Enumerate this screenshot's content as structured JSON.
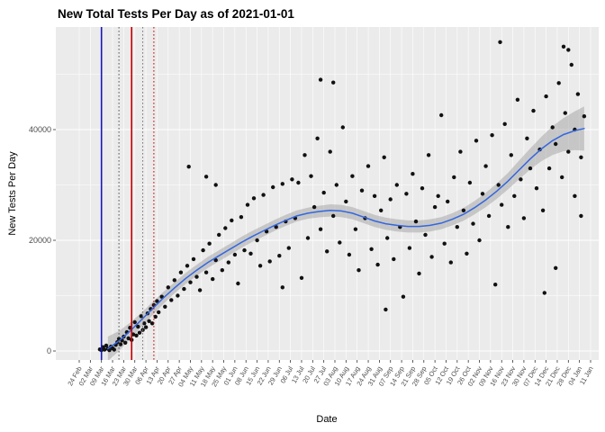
{
  "chart_data": {
    "type": "scatter",
    "title": "New Total Tests Per Day as of 2021-01-01",
    "xlabel": "Date",
    "ylabel": "New Tests Per Day",
    "legend": "none",
    "grid": "on",
    "y_ticks": [
      0,
      20000,
      40000
    ],
    "y_tick_labels": [
      "0",
      "20000",
      "40000"
    ],
    "y_minor_ticks": [
      10000,
      30000,
      50000
    ],
    "ylim": [
      -1600,
      58400
    ],
    "x_tick_labels": [
      "24 Feb",
      "02 Mar",
      "09 Mar",
      "16 Mar",
      "23 Mar",
      "30 Mar",
      "06 Apr",
      "13 Apr",
      "20 Apr",
      "27 Apr",
      "04 May",
      "11 May",
      "18 May",
      "25 May",
      "01 Jun",
      "08 Jun",
      "15 Jun",
      "22 Jun",
      "29 Jun",
      "06 Jul",
      "13 Jul",
      "20 Jul",
      "27 Jul",
      "03 Aug",
      "10 Aug",
      "17 Aug",
      "24 Aug",
      "31 Aug",
      "07 Sep",
      "14 Sep",
      "21 Sep",
      "28 Sep",
      "05 Oct",
      "12 Oct",
      "19 Oct",
      "26 Oct",
      "02 Nov",
      "09 Nov",
      "16 Nov",
      "23 Nov",
      "30 Nov",
      "07 Dec",
      "14 Dec",
      "21 Dec",
      "28 Dec",
      "04 Jan",
      "11 Jan"
    ],
    "x_tick_interval_days": 7,
    "x_domain_days": [
      0,
      322
    ],
    "vlines": [
      {
        "x_day": 14,
        "color": "#1717B8",
        "dash": "solid",
        "width": 1.6
      },
      {
        "x_day": 25,
        "color": "#555555",
        "dash": "dotted",
        "width": 1
      },
      {
        "x_day": 33,
        "color": "#C40000",
        "dash": "solid",
        "width": 1.6
      },
      {
        "x_day": 40,
        "color": "#777777",
        "dash": "dotted",
        "width": 1
      },
      {
        "x_day": 47,
        "color": "#C40000",
        "dash": "dotted",
        "width": 1
      }
    ],
    "smooth": [
      [
        18,
        400,
        2200
      ],
      [
        25,
        1800,
        1800
      ],
      [
        32,
        3600,
        1500
      ],
      [
        39,
        5600,
        1300
      ],
      [
        46,
        7600,
        1200
      ],
      [
        53,
        9600,
        1100
      ],
      [
        60,
        11400,
        1000
      ],
      [
        67,
        13100,
        1000
      ],
      [
        74,
        14600,
        1000
      ],
      [
        81,
        16000,
        1000
      ],
      [
        88,
        17200,
        1000
      ],
      [
        95,
        18400,
        1000
      ],
      [
        102,
        19600,
        1000
      ],
      [
        109,
        20700,
        1000
      ],
      [
        116,
        21700,
        1000
      ],
      [
        123,
        22700,
        1000
      ],
      [
        130,
        23600,
        1000
      ],
      [
        137,
        24400,
        1000
      ],
      [
        144,
        24900,
        1000
      ],
      [
        151,
        25200,
        1050
      ],
      [
        158,
        25400,
        1100
      ],
      [
        165,
        25300,
        1100
      ],
      [
        172,
        24900,
        1100
      ],
      [
        179,
        24200,
        1100
      ],
      [
        186,
        23500,
        1100
      ],
      [
        193,
        23000,
        1100
      ],
      [
        200,
        22700,
        1100
      ],
      [
        207,
        22500,
        1100
      ],
      [
        214,
        22500,
        1100
      ],
      [
        221,
        22700,
        1100
      ],
      [
        228,
        23100,
        1100
      ],
      [
        235,
        23800,
        1100
      ],
      [
        242,
        24700,
        1150
      ],
      [
        249,
        25900,
        1200
      ],
      [
        256,
        27300,
        1300
      ],
      [
        263,
        28900,
        1400
      ],
      [
        270,
        30700,
        1500
      ],
      [
        277,
        32700,
        1700
      ],
      [
        284,
        34700,
        1900
      ],
      [
        291,
        36500,
        2200
      ],
      [
        298,
        38000,
        2600
      ],
      [
        305,
        39100,
        3000
      ],
      [
        312,
        39800,
        3500
      ],
      [
        318,
        40200,
        4000
      ]
    ],
    "points": [
      [
        13,
        300
      ],
      [
        14,
        150
      ],
      [
        15,
        700
      ],
      [
        16,
        250
      ],
      [
        17,
        1000
      ],
      [
        18,
        400
      ],
      [
        19,
        150
      ],
      [
        20,
        800
      ],
      [
        21,
        500
      ],
      [
        22,
        250
      ],
      [
        23,
        1100
      ],
      [
        24,
        1600
      ],
      [
        25,
        2200
      ],
      [
        26,
        1200
      ],
      [
        27,
        1900
      ],
      [
        28,
        2600
      ],
      [
        29,
        1500
      ],
      [
        30,
        3400
      ],
      [
        31,
        2300
      ],
      [
        32,
        4200
      ],
      [
        33,
        2000
      ],
      [
        34,
        3000
      ],
      [
        35,
        5200
      ],
      [
        36,
        2800
      ],
      [
        37,
        4400
      ],
      [
        38,
        3300
      ],
      [
        39,
        6300
      ],
      [
        40,
        3800
      ],
      [
        41,
        5000
      ],
      [
        42,
        4300
      ],
      [
        43,
        6800
      ],
      [
        44,
        5400
      ],
      [
        45,
        7600
      ],
      [
        46,
        5000
      ],
      [
        47,
        8300
      ],
      [
        48,
        6200
      ],
      [
        49,
        9000
      ],
      [
        50,
        7000
      ],
      [
        52,
        9800
      ],
      [
        54,
        8000
      ],
      [
        56,
        11500
      ],
      [
        58,
        9200
      ],
      [
        60,
        12800
      ],
      [
        62,
        10000
      ],
      [
        64,
        14200
      ],
      [
        66,
        11200
      ],
      [
        68,
        15400
      ],
      [
        69,
        33300
      ],
      [
        70,
        12400
      ],
      [
        72,
        16600
      ],
      [
        74,
        13400
      ],
      [
        76,
        11000
      ],
      [
        78,
        18200
      ],
      [
        80,
        31500
      ],
      [
        80,
        14200
      ],
      [
        82,
        19400
      ],
      [
        84,
        13000
      ],
      [
        86,
        30000
      ],
      [
        86,
        16400
      ],
      [
        88,
        21000
      ],
      [
        90,
        14600
      ],
      [
        92,
        22200
      ],
      [
        94,
        16000
      ],
      [
        96,
        23600
      ],
      [
        98,
        17400
      ],
      [
        100,
        12200
      ],
      [
        102,
        24200
      ],
      [
        104,
        18200
      ],
      [
        106,
        26400
      ],
      [
        108,
        17600
      ],
      [
        110,
        27600
      ],
      [
        112,
        20000
      ],
      [
        114,
        15400
      ],
      [
        116,
        28200
      ],
      [
        118,
        21600
      ],
      [
        120,
        16200
      ],
      [
        122,
        29600
      ],
      [
        124,
        22400
      ],
      [
        126,
        17200
      ],
      [
        128,
        30200
      ],
      [
        128,
        11500
      ],
      [
        130,
        23400
      ],
      [
        132,
        18600
      ],
      [
        134,
        31000
      ],
      [
        136,
        24000
      ],
      [
        138,
        30400
      ],
      [
        140,
        13200
      ],
      [
        142,
        35400
      ],
      [
        144,
        20400
      ],
      [
        146,
        31600
      ],
      [
        148,
        26000
      ],
      [
        150,
        38400
      ],
      [
        152,
        49000
      ],
      [
        152,
        22000
      ],
      [
        154,
        28600
      ],
      [
        156,
        18000
      ],
      [
        158,
        36000
      ],
      [
        160,
        48500
      ],
      [
        160,
        24400
      ],
      [
        162,
        30000
      ],
      [
        164,
        19600
      ],
      [
        166,
        40400
      ],
      [
        168,
        27000
      ],
      [
        170,
        17400
      ],
      [
        172,
        31600
      ],
      [
        174,
        22000
      ],
      [
        176,
        14600
      ],
      [
        178,
        29000
      ],
      [
        180,
        24000
      ],
      [
        182,
        33400
      ],
      [
        184,
        18400
      ],
      [
        186,
        28000
      ],
      [
        188,
        15600
      ],
      [
        190,
        25400
      ],
      [
        192,
        35000
      ],
      [
        193,
        7500
      ],
      [
        194,
        20400
      ],
      [
        196,
        27400
      ],
      [
        198,
        16600
      ],
      [
        200,
        30000
      ],
      [
        202,
        22400
      ],
      [
        204,
        9800
      ],
      [
        206,
        28400
      ],
      [
        208,
        18600
      ],
      [
        210,
        32000
      ],
      [
        212,
        23400
      ],
      [
        214,
        14000
      ],
      [
        216,
        29400
      ],
      [
        218,
        21000
      ],
      [
        220,
        35400
      ],
      [
        222,
        17000
      ],
      [
        224,
        26000
      ],
      [
        226,
        28000
      ],
      [
        228,
        42600
      ],
      [
        230,
        19400
      ],
      [
        232,
        27000
      ],
      [
        234,
        16000
      ],
      [
        236,
        31400
      ],
      [
        238,
        22400
      ],
      [
        240,
        36000
      ],
      [
        242,
        25400
      ],
      [
        244,
        17600
      ],
      [
        246,
        30400
      ],
      [
        248,
        23000
      ],
      [
        250,
        38000
      ],
      [
        252,
        20000
      ],
      [
        254,
        28400
      ],
      [
        256,
        33400
      ],
      [
        258,
        24400
      ],
      [
        260,
        39000
      ],
      [
        262,
        12000
      ],
      [
        264,
        30000
      ],
      [
        265,
        55800
      ],
      [
        266,
        26400
      ],
      [
        268,
        41000
      ],
      [
        270,
        22400
      ],
      [
        272,
        35400
      ],
      [
        274,
        28000
      ],
      [
        276,
        45400
      ],
      [
        278,
        31000
      ],
      [
        280,
        24000
      ],
      [
        282,
        38400
      ],
      [
        284,
        33000
      ],
      [
        286,
        43400
      ],
      [
        288,
        29400
      ],
      [
        290,
        36400
      ],
      [
        292,
        25400
      ],
      [
        293,
        10500
      ],
      [
        294,
        46000
      ],
      [
        296,
        33000
      ],
      [
        298,
        40400
      ],
      [
        300,
        15000
      ],
      [
        300,
        37400
      ],
      [
        302,
        48400
      ],
      [
        304,
        31400
      ],
      [
        305,
        55000
      ],
      [
        306,
        43000
      ],
      [
        308,
        54400
      ],
      [
        308,
        36000
      ],
      [
        310,
        51700
      ],
      [
        312,
        40000
      ],
      [
        312,
        28000
      ],
      [
        314,
        46400
      ],
      [
        316,
        35000
      ],
      [
        316,
        24400
      ],
      [
        318,
        42400
      ]
    ],
    "colors": {
      "panel": "#EBEBEB",
      "grid": "#FFFFFF",
      "point": "#111111",
      "smooth": "#3366E0",
      "band": "#999999",
      "tick_text": "#4D4D4D",
      "tick_mark": "#333333"
    }
  }
}
